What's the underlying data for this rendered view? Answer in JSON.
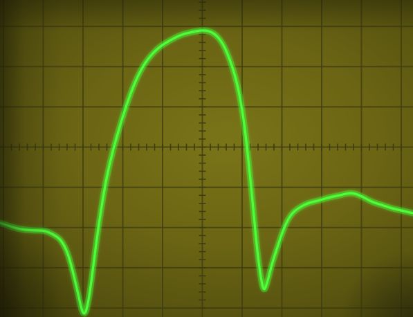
{
  "scene": {
    "subject": "oscilloscope-screen",
    "screen_color": "#6b6514",
    "grid_color": "#3e3c10",
    "trace_color": "#4dff3a",
    "trace_glow_color": "#3cff30",
    "graticule": {
      "columns": 10,
      "rows": 8,
      "minor_ticks_per_division": 5
    }
  }
}
